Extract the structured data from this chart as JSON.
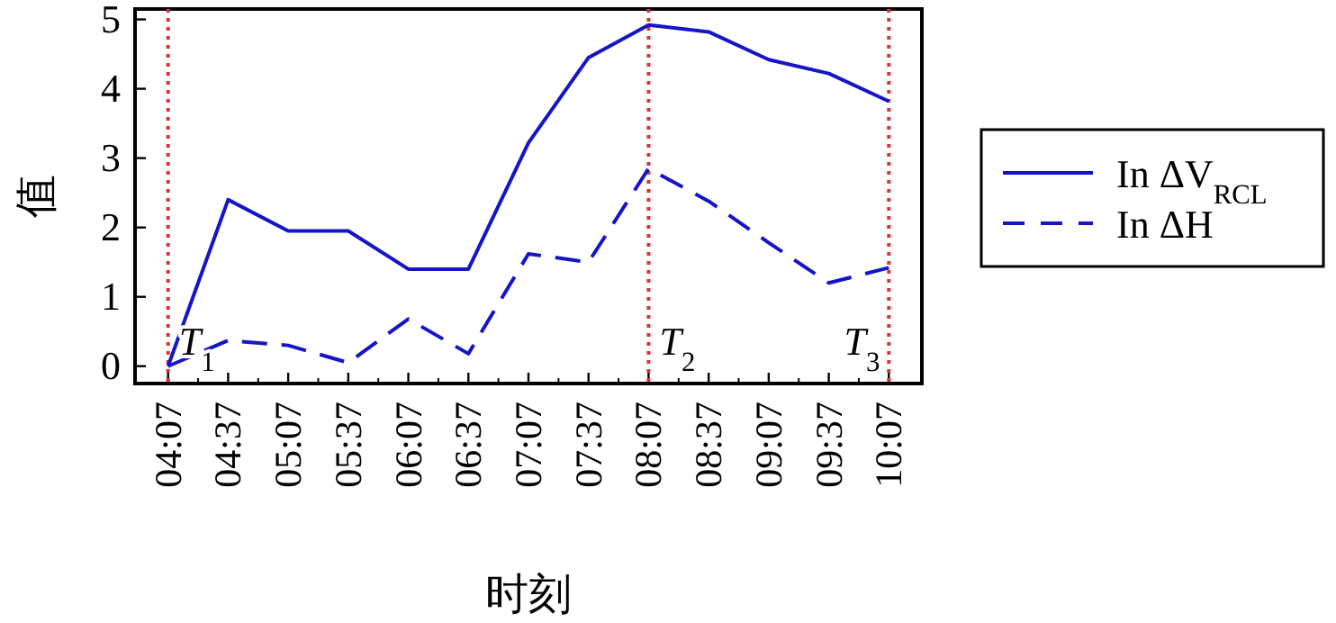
{
  "chart_data": {
    "type": "line",
    "xlabel": "时刻",
    "ylabel": "值",
    "categories": [
      "04:07",
      "04:37",
      "05:07",
      "05:37",
      "06:07",
      "06:37",
      "07:07",
      "07:37",
      "08:07",
      "08:37",
      "09:07",
      "09:37",
      "10:07"
    ],
    "series": [
      {
        "name": "In ΔV$_{RCL}$",
        "color": "#1414c8",
        "line_style": "solid",
        "values": [
          0,
          2.4,
          1.95,
          1.95,
          1.4,
          1.4,
          3.22,
          4.45,
          4.92,
          4.82,
          4.42,
          4.22,
          3.82
        ]
      },
      {
        "name": "In ΔH",
        "color": "#1414c8",
        "line_style": "dashed",
        "values": [
          0,
          0.37,
          0.3,
          0.05,
          0.68,
          0.18,
          1.62,
          1.5,
          2.85,
          2.38,
          1.78,
          1.2,
          1.42
        ]
      }
    ],
    "ylim": [
      -0.25,
      5.15
    ],
    "yticks": [
      0,
      1,
      2,
      3,
      4,
      5
    ],
    "ref_lines": [
      {
        "axis": "x",
        "value": "04:07",
        "label": "T$_{1}$",
        "color": "#e03030",
        "line_style": "dotted"
      },
      {
        "axis": "x",
        "value": "08:07",
        "label": "T$_{2}$",
        "color": "#e03030",
        "line_style": "dotted"
      },
      {
        "axis": "x",
        "value": "10:07",
        "label": "T$_{3}$",
        "color": "#e03030",
        "line_style": "dotted"
      }
    ],
    "legend": "right"
  }
}
